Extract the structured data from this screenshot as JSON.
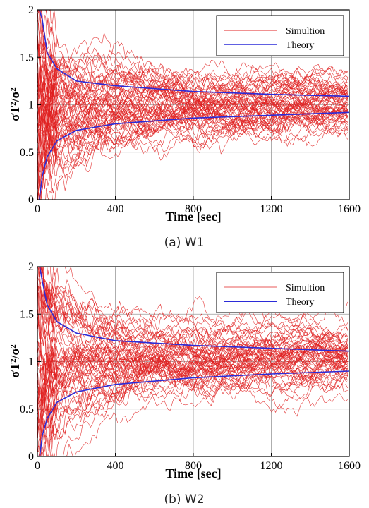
{
  "chart_data": [
    {
      "type": "line",
      "caption": "(a)  W1",
      "xlabel": "Time [sec]",
      "ylabel": "σT²/σ²",
      "xlim": [
        0,
        1600
      ],
      "ylim": [
        0,
        2
      ],
      "xticks": [
        "0",
        "400",
        "800",
        "1200",
        "1600"
      ],
      "yticks": [
        "0",
        "0.5",
        "1",
        "1.5",
        "2"
      ],
      "grid": true,
      "legend_position": "top-right",
      "legend": [
        "Simultion",
        "Theory"
      ],
      "theory_width_factor": 0.5,
      "series": [
        {
          "name": "Simultion",
          "color": "#e02020",
          "count": 60,
          "seed": 11
        },
        {
          "name": "Theory",
          "color": "#2b2bd8",
          "upper": [
            [
              10,
              2.0
            ],
            [
              25,
              1.9
            ],
            [
              50,
              1.55
            ],
            [
              100,
              1.38
            ],
            [
              200,
              1.25
            ],
            [
              400,
              1.2
            ],
            [
              800,
              1.14
            ],
            [
              1200,
              1.11
            ],
            [
              1600,
              1.09
            ]
          ],
          "lower": [
            [
              10,
              0.0
            ],
            [
              25,
              0.25
            ],
            [
              50,
              0.45
            ],
            [
              100,
              0.62
            ],
            [
              200,
              0.73
            ],
            [
              400,
              0.8
            ],
            [
              800,
              0.86
            ],
            [
              1200,
              0.89
            ],
            [
              1600,
              0.92
            ]
          ]
        }
      ]
    },
    {
      "type": "line",
      "caption": "(b)  W2",
      "xlabel": "Time [sec]",
      "ylabel": "σT²/σ²",
      "xlim": [
        0,
        1600
      ],
      "ylim": [
        0,
        2
      ],
      "xticks": [
        "0",
        "400",
        "800",
        "1200",
        "1600"
      ],
      "yticks": [
        "0",
        "0.5",
        "1",
        "1.5",
        "2"
      ],
      "grid": true,
      "legend_position": "top-right",
      "legend": [
        "Simultion",
        "Theory"
      ],
      "series": [
        {
          "name": "Simultion",
          "color": "#e02020",
          "count": 60,
          "seed": 29
        },
        {
          "name": "Theory",
          "color": "#2b2bd8",
          "upper": [
            [
              12,
              2.0
            ],
            [
              25,
              1.85
            ],
            [
              50,
              1.6
            ],
            [
              100,
              1.42
            ],
            [
              200,
              1.3
            ],
            [
              400,
              1.22
            ],
            [
              800,
              1.17
            ],
            [
              1200,
              1.14
            ],
            [
              1600,
              1.11
            ]
          ],
          "lower": [
            [
              12,
              0.0
            ],
            [
              25,
              0.22
            ],
            [
              50,
              0.4
            ],
            [
              100,
              0.57
            ],
            [
              200,
              0.68
            ],
            [
              400,
              0.76
            ],
            [
              800,
              0.83
            ],
            [
              1200,
              0.87
            ],
            [
              1600,
              0.9
            ]
          ]
        }
      ]
    }
  ]
}
